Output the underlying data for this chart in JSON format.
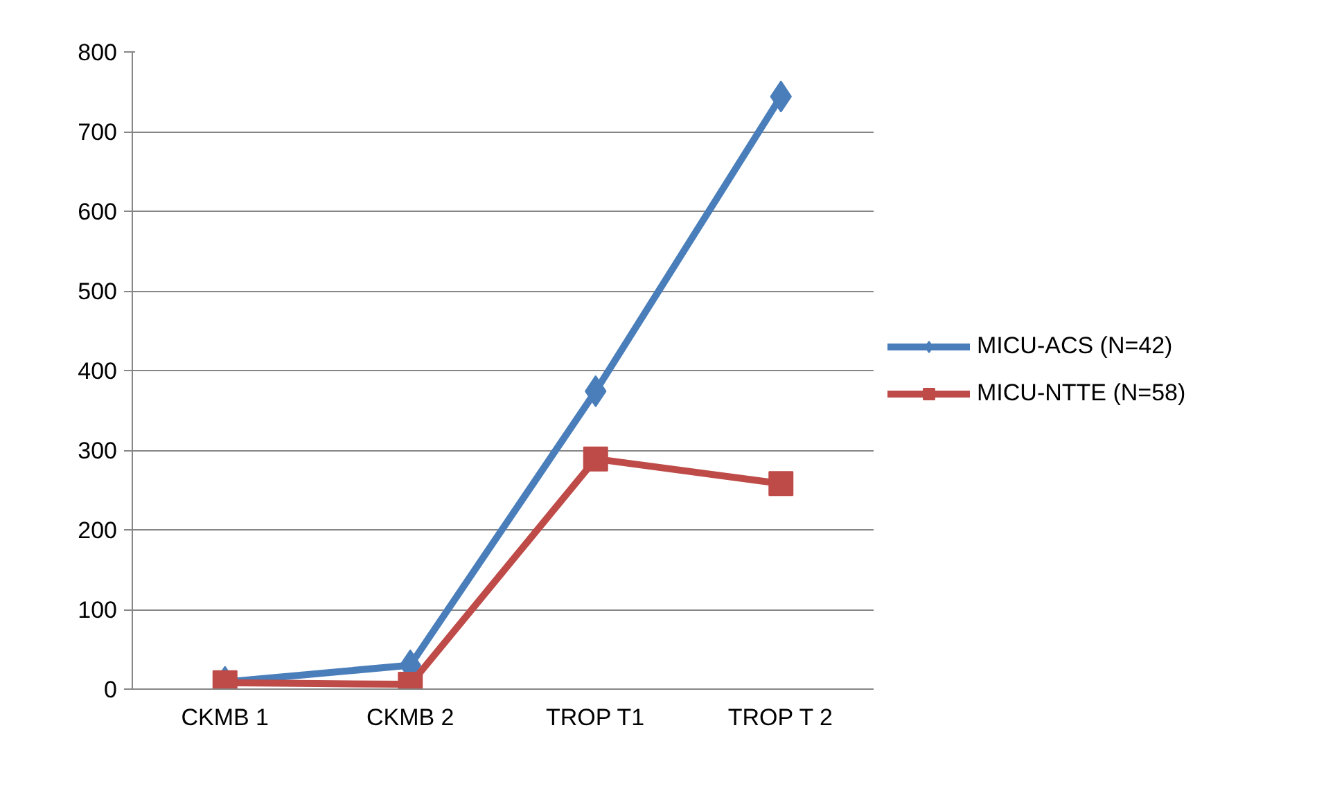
{
  "chart_data": {
    "type": "line",
    "categories": [
      "CKMB 1",
      "CKMB 2",
      "TROP T1",
      "TROP T 2"
    ],
    "series": [
      {
        "name": "MICU-ACS (N=42)",
        "color": "#4a7ebb",
        "marker": "diamond",
        "values": [
          9,
          30,
          374,
          744
        ]
      },
      {
        "name": "MICU-NTTE (N=58)",
        "color": "#be4b48",
        "marker": "square",
        "values": [
          8,
          6,
          289,
          258
        ]
      }
    ],
    "ylim": [
      0,
      800
    ],
    "yticks": [
      0,
      100,
      200,
      300,
      400,
      500,
      600,
      700,
      800
    ],
    "grid": "y",
    "legend": "right"
  }
}
